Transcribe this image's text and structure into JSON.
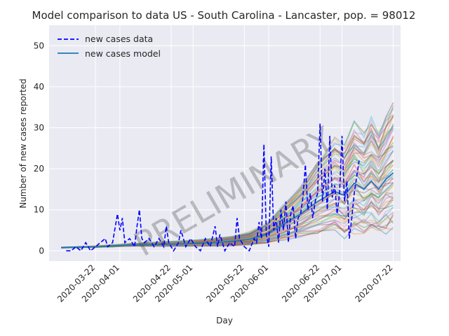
{
  "chart_data": {
    "type": "line",
    "title": "Model comparison to data US - South Carolina - Lancaster, pop. = 98012",
    "xlabel": "Day",
    "ylabel": "Number of new cases reported",
    "watermark": "PRELIMINARY",
    "legend_position": "top-left",
    "grid": true,
    "ylim": [
      -2.5,
      55
    ],
    "xlim": [
      "2020-03-03",
      "2020-07-25"
    ],
    "x_ticks": [
      "2020-03-22",
      "2020-04-01",
      "2020-04-22",
      "2020-05-01",
      "2020-05-22",
      "2020-06-01",
      "2020-06-22",
      "2020-07-01",
      "2020-07-22"
    ],
    "y_ticks": [
      0,
      10,
      20,
      30,
      40,
      50
    ],
    "colors": {
      "background": "#eaeaf2",
      "grid": "#ffffff",
      "data": "#0000ff",
      "model": "#1f77b4",
      "ensemble_palette": [
        "#1f77b4",
        "#ff7f0e",
        "#2ca02c",
        "#d62728",
        "#9467bd",
        "#8c564b",
        "#e377c2",
        "#7f7f7f",
        "#bcbd22",
        "#17becf"
      ]
    },
    "series": [
      {
        "name": "new cases data",
        "style": "dashed",
        "color": "#0000ff",
        "points": [
          [
            "2020-03-10",
            0
          ],
          [
            "2020-03-12",
            0
          ],
          [
            "2020-03-14",
            1
          ],
          [
            "2020-03-16",
            0
          ],
          [
            "2020-03-18",
            2
          ],
          [
            "2020-03-20",
            0
          ],
          [
            "2020-03-22",
            1
          ],
          [
            "2020-03-24",
            2
          ],
          [
            "2020-03-26",
            3
          ],
          [
            "2020-03-27",
            1
          ],
          [
            "2020-03-29",
            2
          ],
          [
            "2020-03-31",
            9
          ],
          [
            "2020-04-01",
            5
          ],
          [
            "2020-04-02",
            8
          ],
          [
            "2020-04-03",
            2
          ],
          [
            "2020-04-05",
            3
          ],
          [
            "2020-04-07",
            1
          ],
          [
            "2020-04-08",
            6
          ],
          [
            "2020-04-09",
            10
          ],
          [
            "2020-04-10",
            3
          ],
          [
            "2020-04-11",
            2
          ],
          [
            "2020-04-13",
            3
          ],
          [
            "2020-04-15",
            1
          ],
          [
            "2020-04-17",
            3
          ],
          [
            "2020-04-19",
            1
          ],
          [
            "2020-04-20",
            6
          ],
          [
            "2020-04-21",
            2
          ],
          [
            "2020-04-23",
            0
          ],
          [
            "2020-04-25",
            2
          ],
          [
            "2020-04-26",
            5
          ],
          [
            "2020-04-28",
            1
          ],
          [
            "2020-04-30",
            3
          ],
          [
            "2020-05-02",
            1
          ],
          [
            "2020-05-04",
            0
          ],
          [
            "2020-05-06",
            3
          ],
          [
            "2020-05-08",
            1
          ],
          [
            "2020-05-10",
            6
          ],
          [
            "2020-05-11",
            1
          ],
          [
            "2020-05-12",
            4
          ],
          [
            "2020-05-14",
            0
          ],
          [
            "2020-05-16",
            2
          ],
          [
            "2020-05-18",
            1
          ],
          [
            "2020-05-19",
            8
          ],
          [
            "2020-05-20",
            3
          ],
          [
            "2020-05-22",
            1
          ],
          [
            "2020-05-24",
            0
          ],
          [
            "2020-05-26",
            3
          ],
          [
            "2020-05-27",
            2
          ],
          [
            "2020-05-28",
            7
          ],
          [
            "2020-05-29",
            3
          ],
          [
            "2020-05-30",
            26
          ],
          [
            "2020-05-31",
            4
          ],
          [
            "2020-06-01",
            1
          ],
          [
            "2020-06-02",
            23
          ],
          [
            "2020-06-03",
            5
          ],
          [
            "2020-06-04",
            8
          ],
          [
            "2020-06-05",
            2
          ],
          [
            "2020-06-06",
            10
          ],
          [
            "2020-06-07",
            5
          ],
          [
            "2020-06-08",
            12
          ],
          [
            "2020-06-09",
            2
          ],
          [
            "2020-06-10",
            9
          ],
          [
            "2020-06-11",
            11
          ],
          [
            "2020-06-12",
            3
          ],
          [
            "2020-06-13",
            8
          ],
          [
            "2020-06-14",
            9
          ],
          [
            "2020-06-15",
            13
          ],
          [
            "2020-06-16",
            21
          ],
          [
            "2020-06-17",
            10
          ],
          [
            "2020-06-18",
            14
          ],
          [
            "2020-06-19",
            8
          ],
          [
            "2020-06-20",
            12
          ],
          [
            "2020-06-21",
            14
          ],
          [
            "2020-06-22",
            31
          ],
          [
            "2020-06-23",
            12
          ],
          [
            "2020-06-24",
            20
          ],
          [
            "2020-06-25",
            10
          ],
          [
            "2020-06-26",
            28
          ],
          [
            "2020-06-27",
            13
          ],
          [
            "2020-06-28",
            16
          ],
          [
            "2020-06-29",
            9
          ],
          [
            "2020-06-30",
            14
          ],
          [
            "2020-07-01",
            28
          ],
          [
            "2020-07-02",
            12
          ],
          [
            "2020-07-03",
            17
          ],
          [
            "2020-07-04",
            3
          ],
          [
            "2020-07-05",
            8
          ],
          [
            "2020-07-06",
            14
          ],
          [
            "2020-07-07",
            18
          ],
          [
            "2020-07-08",
            22
          ]
        ]
      },
      {
        "name": "new cases model",
        "style": "solid",
        "color": "#1f77b4",
        "points": [
          [
            "2020-03-08",
            0.8
          ],
          [
            "2020-03-15",
            0.9
          ],
          [
            "2020-03-22",
            1.0
          ],
          [
            "2020-03-29",
            1.2
          ],
          [
            "2020-04-05",
            1.4
          ],
          [
            "2020-04-12",
            1.5
          ],
          [
            "2020-04-19",
            1.6
          ],
          [
            "2020-04-26",
            1.7
          ],
          [
            "2020-05-03",
            1.8
          ],
          [
            "2020-05-10",
            2.0
          ],
          [
            "2020-05-17",
            2.3
          ],
          [
            "2020-05-24",
            2.8
          ],
          [
            "2020-05-31",
            4.0
          ],
          [
            "2020-06-07",
            6.5
          ],
          [
            "2020-06-14",
            9.0
          ],
          [
            "2020-06-21",
            12.0
          ],
          [
            "2020-06-28",
            14.5
          ],
          [
            "2020-07-02",
            13.5
          ],
          [
            "2020-07-06",
            16.5
          ],
          [
            "2020-07-10",
            15.0
          ],
          [
            "2020-07-13",
            17.0
          ],
          [
            "2020-07-16",
            15.0
          ],
          [
            "2020-07-19",
            17.5
          ],
          [
            "2020-07-22",
            19.0
          ]
        ]
      }
    ],
    "ensemble": {
      "count": 60,
      "median": [
        [
          "2020-03-08",
          0.8
        ],
        [
          "2020-03-15",
          0.9
        ],
        [
          "2020-03-22",
          1.0
        ],
        [
          "2020-03-29",
          1.2
        ],
        [
          "2020-04-05",
          1.4
        ],
        [
          "2020-04-12",
          1.5
        ],
        [
          "2020-04-19",
          1.6
        ],
        [
          "2020-04-26",
          1.7
        ],
        [
          "2020-05-03",
          1.8
        ],
        [
          "2020-05-10",
          2.0
        ],
        [
          "2020-05-17",
          2.3
        ],
        [
          "2020-05-24",
          2.8
        ],
        [
          "2020-05-31",
          4.0
        ],
        [
          "2020-06-07",
          6.5
        ],
        [
          "2020-06-14",
          9.0
        ],
        [
          "2020-06-21",
          12.0
        ],
        [
          "2020-06-28",
          14.5
        ],
        [
          "2020-07-02",
          13.5
        ],
        [
          "2020-07-06",
          16.5
        ],
        [
          "2020-07-10",
          15.0
        ],
        [
          "2020-07-13",
          17.0
        ],
        [
          "2020-07-16",
          15.0
        ],
        [
          "2020-07-19",
          17.5
        ],
        [
          "2020-07-22",
          19.0
        ]
      ],
      "spread_range": [
        0.3,
        1.9
      ]
    }
  }
}
